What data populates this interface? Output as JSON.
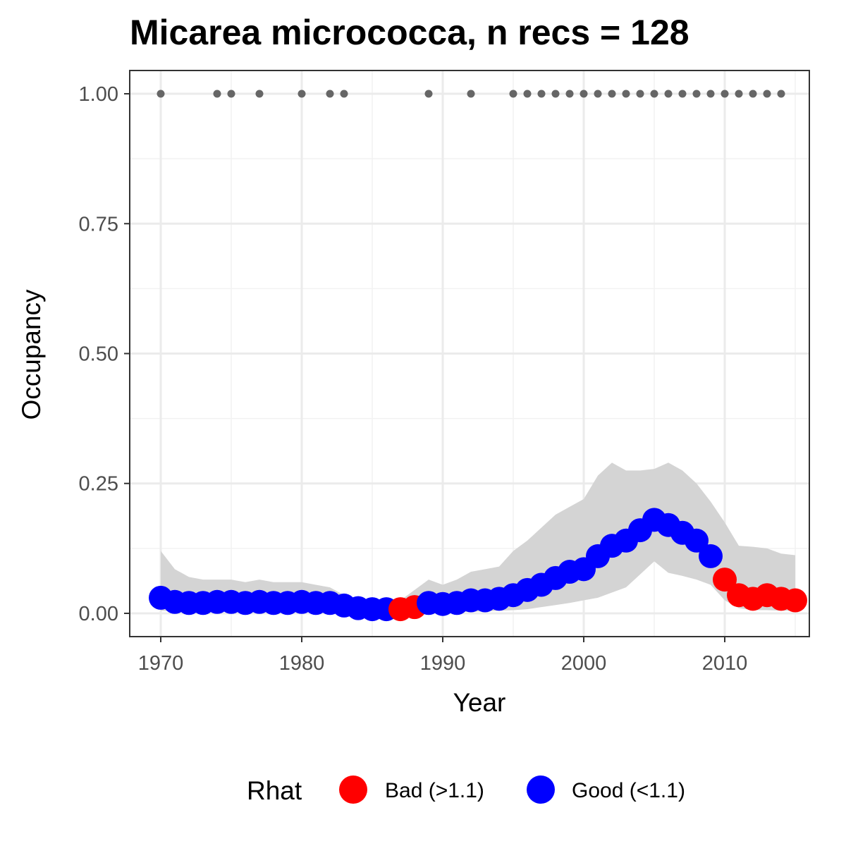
{
  "chart_data": {
    "type": "scatter",
    "title": "Micarea micrococca, n recs = 128",
    "xlabel": "Year",
    "ylabel": "Occupancy",
    "xlim": [
      1967.8,
      1016.0
    ],
    "ylim": [
      -0.0448,
      1.0448
    ],
    "x_ticks": [
      1970,
      1980,
      1990,
      2000,
      2010
    ],
    "x_tick_labels": [
      "1970",
      "1980",
      "1990",
      "2000",
      "2010"
    ],
    "y_ticks": [
      0.0,
      0.25,
      0.5,
      0.75,
      1.0
    ],
    "y_tick_labels": [
      "0.00",
      "0.25",
      "0.50",
      "0.75",
      "1.00"
    ],
    "grid": true,
    "legend": {
      "title": "Rhat",
      "position": "bottom",
      "entries": [
        {
          "label": "Bad (>1.1)",
          "color": "#ff0000"
        },
        {
          "label": "Good (<1.1)",
          "color": "#0000ff"
        }
      ]
    },
    "colors": {
      "bad": "#ff0000",
      "good": "#0000ff",
      "records": "#666666",
      "ribbon": "#d4d4d4"
    },
    "series": [
      {
        "name": "Occupancy",
        "x": [
          1970,
          1971,
          1972,
          1973,
          1974,
          1975,
          1976,
          1977,
          1978,
          1979,
          1980,
          1981,
          1982,
          1983,
          1984,
          1985,
          1986,
          1987,
          1988,
          1989,
          1990,
          1991,
          1992,
          1993,
          1994,
          1995,
          1996,
          1997,
          1998,
          1999,
          2000,
          2001,
          2002,
          2003,
          2004,
          2005,
          2006,
          2007,
          2008,
          2009,
          2010,
          2011,
          2012,
          2013,
          2014,
          2015
        ],
        "y": [
          0.03,
          0.022,
          0.02,
          0.02,
          0.022,
          0.022,
          0.02,
          0.022,
          0.02,
          0.02,
          0.022,
          0.02,
          0.02,
          0.015,
          0.01,
          0.008,
          0.008,
          0.008,
          0.012,
          0.02,
          0.018,
          0.02,
          0.025,
          0.025,
          0.028,
          0.035,
          0.045,
          0.055,
          0.068,
          0.08,
          0.085,
          0.11,
          0.13,
          0.14,
          0.16,
          0.18,
          0.17,
          0.155,
          0.14,
          0.11,
          0.065,
          0.035,
          0.028,
          0.035,
          0.028,
          0.025
        ],
        "rhat": [
          "Good",
          "Good",
          "Good",
          "Good",
          "Good",
          "Good",
          "Good",
          "Good",
          "Good",
          "Good",
          "Good",
          "Good",
          "Good",
          "Good",
          "Good",
          "Good",
          "Good",
          "Bad",
          "Bad",
          "Good",
          "Good",
          "Good",
          "Good",
          "Good",
          "Good",
          "Good",
          "Good",
          "Good",
          "Good",
          "Good",
          "Good",
          "Good",
          "Good",
          "Good",
          "Good",
          "Good",
          "Good",
          "Good",
          "Good",
          "Good",
          "Bad",
          "Bad",
          "Bad",
          "Bad",
          "Bad",
          "Bad"
        ],
        "lower": [
          0.005,
          0.004,
          0.004,
          0.004,
          0.004,
          0.004,
          0.004,
          0.004,
          0.004,
          0.004,
          0.004,
          0.004,
          0.003,
          0.002,
          0.001,
          0.0,
          0.0,
          0.0,
          0.001,
          0.002,
          0.001,
          0.002,
          0.003,
          0.004,
          0.005,
          0.006,
          0.008,
          0.012,
          0.016,
          0.02,
          0.025,
          0.03,
          0.04,
          0.05,
          0.075,
          0.1,
          0.078,
          0.072,
          0.065,
          0.055,
          0.025,
          0.01,
          0.006,
          0.006,
          0.005,
          0.005
        ],
        "upper": [
          0.12,
          0.085,
          0.07,
          0.065,
          0.065,
          0.065,
          0.06,
          0.065,
          0.06,
          0.06,
          0.06,
          0.055,
          0.05,
          0.035,
          0.022,
          0.02,
          0.02,
          0.025,
          0.045,
          0.065,
          0.055,
          0.065,
          0.08,
          0.085,
          0.09,
          0.12,
          0.14,
          0.165,
          0.19,
          0.205,
          0.22,
          0.265,
          0.29,
          0.275,
          0.275,
          0.278,
          0.29,
          0.275,
          0.25,
          0.215,
          0.175,
          0.13,
          0.128,
          0.125,
          0.115,
          0.112
        ]
      },
      {
        "name": "Records",
        "x": [
          1970,
          1974,
          1975,
          1977,
          1980,
          1982,
          1983,
          1989,
          1992,
          1995,
          1996,
          1997,
          1998,
          1999,
          2000,
          2001,
          2002,
          2003,
          2004,
          2005,
          2006,
          2007,
          2008,
          2009,
          2010,
          2011,
          2012,
          2013,
          2014
        ],
        "y": [
          1,
          1,
          1,
          1,
          1,
          1,
          1,
          1,
          1,
          1,
          1,
          1,
          1,
          1,
          1,
          1,
          1,
          1,
          1,
          1,
          1,
          1,
          1,
          1,
          1,
          1,
          1,
          1,
          1
        ]
      }
    ]
  }
}
